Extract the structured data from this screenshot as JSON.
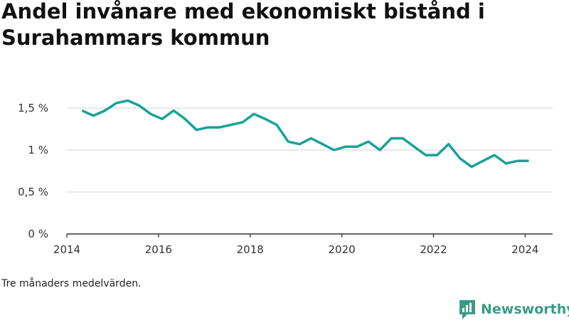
{
  "colors": {
    "line": "#17a299",
    "grid": "#d9d9d9",
    "axis": "#333333",
    "brand": "#3a9b86"
  },
  "chart_data": {
    "type": "line",
    "title": "Andel invånare med ekonomiskt bistånd i Surahammars kommun",
    "xlabel": "",
    "ylabel": "",
    "grid": true,
    "xlim": [
      2014,
      2024.6
    ],
    "ylim": [
      0,
      1.5
    ],
    "x_ticks": [
      2014,
      2016,
      2018,
      2020,
      2022,
      2024
    ],
    "x_tick_labels": [
      "2014",
      "2016",
      "2018",
      "2020",
      "2022",
      "2024"
    ],
    "y_ticks": [
      0,
      0.5,
      1,
      1.5
    ],
    "y_tick_labels": [
      "0 %",
      "0,5 %",
      "1 %",
      "1,5 %"
    ],
    "series": [
      {
        "x": [
          2014.33,
          2014.58,
          2014.83,
          2015.08,
          2015.33,
          2015.58,
          2015.83,
          2016.08,
          2016.33,
          2016.58,
          2016.83,
          2017.08,
          2017.33,
          2017.58,
          2017.83,
          2018.08,
          2018.33,
          2018.58,
          2018.83,
          2019.08,
          2019.33,
          2019.58,
          2019.83,
          2020.08,
          2020.33,
          2020.58,
          2020.83,
          2021.08,
          2021.33,
          2021.58,
          2021.83,
          2022.08,
          2022.33,
          2022.58,
          2022.83,
          2023.08,
          2023.33,
          2023.58,
          2023.83,
          2024.08
        ],
        "values": [
          1.47,
          1.41,
          1.47,
          1.56,
          1.59,
          1.53,
          1.43,
          1.37,
          1.47,
          1.37,
          1.24,
          1.27,
          1.27,
          1.3,
          1.33,
          1.43,
          1.37,
          1.3,
          1.1,
          1.07,
          1.14,
          1.07,
          1.0,
          1.04,
          1.04,
          1.1,
          1.0,
          1.14,
          1.14,
          1.04,
          0.94,
          0.94,
          1.07,
          0.9,
          0.8,
          0.87,
          0.94,
          0.84,
          0.87,
          0.87
        ]
      }
    ]
  },
  "footnote": "Tre månaders medelvärden.",
  "brand": {
    "name": "Newsworthy",
    "icon": "newsworthy-logo-icon"
  }
}
